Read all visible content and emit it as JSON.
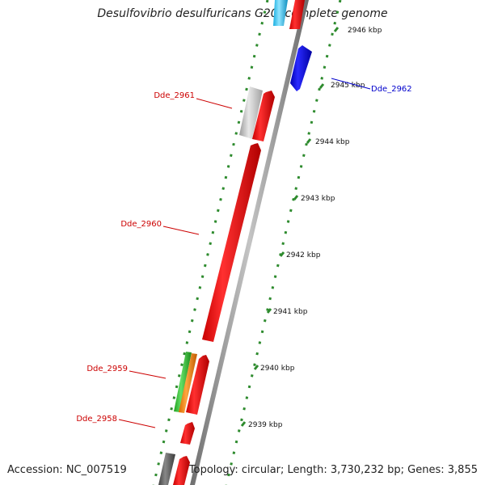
{
  "title": "Desulfovibrio desulfuricans G20, complete genome",
  "footer": {
    "accession": "Accession: NC_007519",
    "info": "Topology: circular; Length: 3,730,232 bp; Genes: 3,855"
  },
  "colors": {
    "label_red": "#cc0000",
    "label_blue": "#0000cc",
    "dot_green": "#2e8b2e",
    "backbone": "#8c8c8c"
  },
  "ticks": [
    {
      "label": "2946 kbp"
    },
    {
      "label": "2945 kbp"
    },
    {
      "label": "2944 kbp"
    },
    {
      "label": "2943 kbp"
    },
    {
      "label": "2942 kbp"
    },
    {
      "label": "2941 kbp"
    },
    {
      "label": "2940 kbp"
    },
    {
      "label": "2939 kbp"
    }
  ],
  "gene_labels": [
    {
      "name": "Dde_2962",
      "color": "#0000cc"
    },
    {
      "name": "Dde_2961",
      "color": "#cc0000"
    },
    {
      "name": "Dde_2960",
      "color": "#cc0000"
    },
    {
      "name": "Dde_2959",
      "color": "#cc0000"
    },
    {
      "name": "Dde_2958",
      "color": "#cc0000"
    }
  ]
}
